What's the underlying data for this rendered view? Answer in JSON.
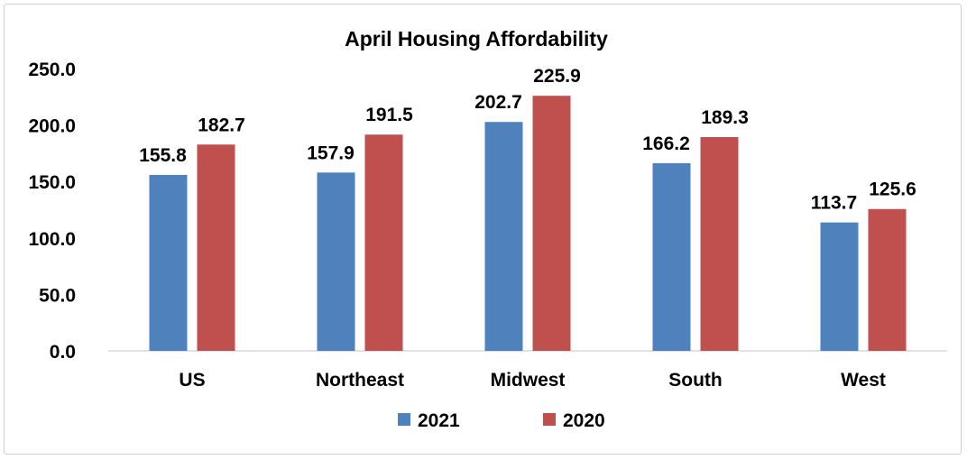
{
  "chart_data": {
    "type": "bar",
    "title": "April Housing Affordability",
    "xlabel": "",
    "ylabel": "",
    "categories": [
      "US",
      "Northeast",
      "Midwest",
      "South",
      "West"
    ],
    "series": [
      {
        "name": "2021",
        "color": "#4F81BD",
        "values": [
          155.8,
          157.9,
          202.7,
          166.2,
          113.7
        ]
      },
      {
        "name": "2020",
        "color": "#C0504D",
        "values": [
          182.7,
          191.5,
          225.9,
          189.3,
          125.6
        ]
      }
    ],
    "ylim": [
      0,
      250
    ],
    "yticks": [
      "0.0",
      "50.0",
      "100.0",
      "150.0",
      "200.0",
      "250.0"
    ],
    "data_labels": [
      [
        "155.8",
        "157.9",
        "202.7",
        "166.2",
        "113.7"
      ],
      [
        "182.7",
        "191.5",
        "225.9",
        "189.3",
        "125.6"
      ]
    ],
    "grid": false,
    "legend_position": "bottom"
  }
}
